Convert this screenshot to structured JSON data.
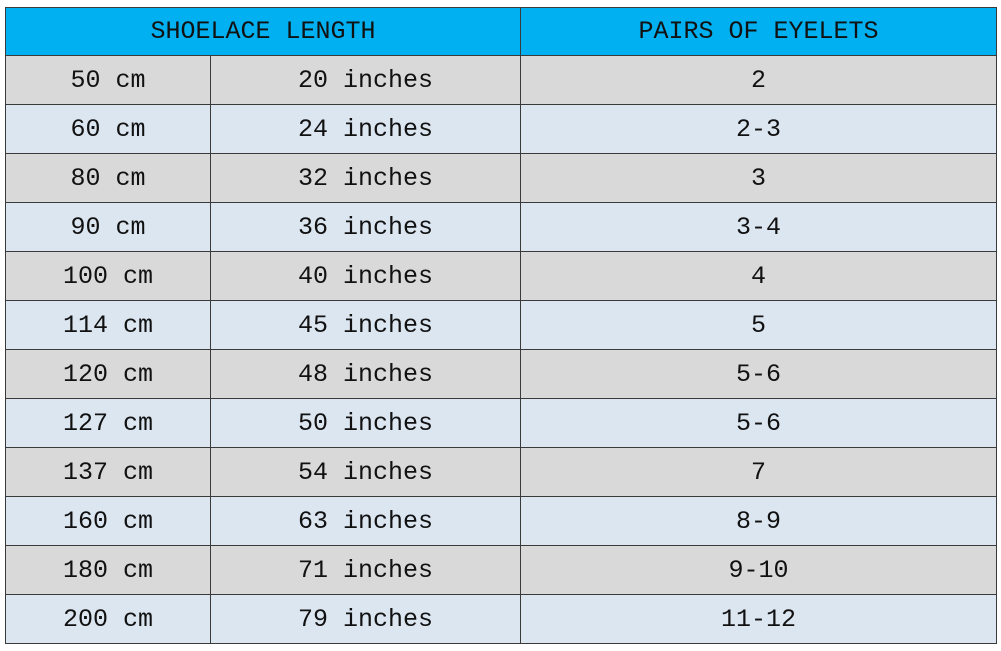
{
  "table": {
    "header": [
      "SHOELACE LENGTH",
      "PAIRS OF EYELETS"
    ],
    "rows": [
      [
        "50 cm",
        "20 inches",
        "2"
      ],
      [
        "60 cm",
        "24 inches",
        "2-3"
      ],
      [
        "80 cm",
        "32 inches",
        "3"
      ],
      [
        "90 cm",
        "36 inches",
        "3-4"
      ],
      [
        "100 cm",
        "40 inches",
        "4"
      ],
      [
        "114 cm",
        "45 inches",
        "5"
      ],
      [
        "120 cm",
        "48 inches",
        "5-6"
      ],
      [
        "127 cm",
        "50 inches",
        "5-6"
      ],
      [
        "137 cm",
        "54 inches",
        "7"
      ],
      [
        "160 cm",
        "63 inches",
        "8-9"
      ],
      [
        "180 cm",
        "71 inches",
        "9-10"
      ],
      [
        "200 cm",
        "79 inches",
        "11-12"
      ]
    ]
  }
}
